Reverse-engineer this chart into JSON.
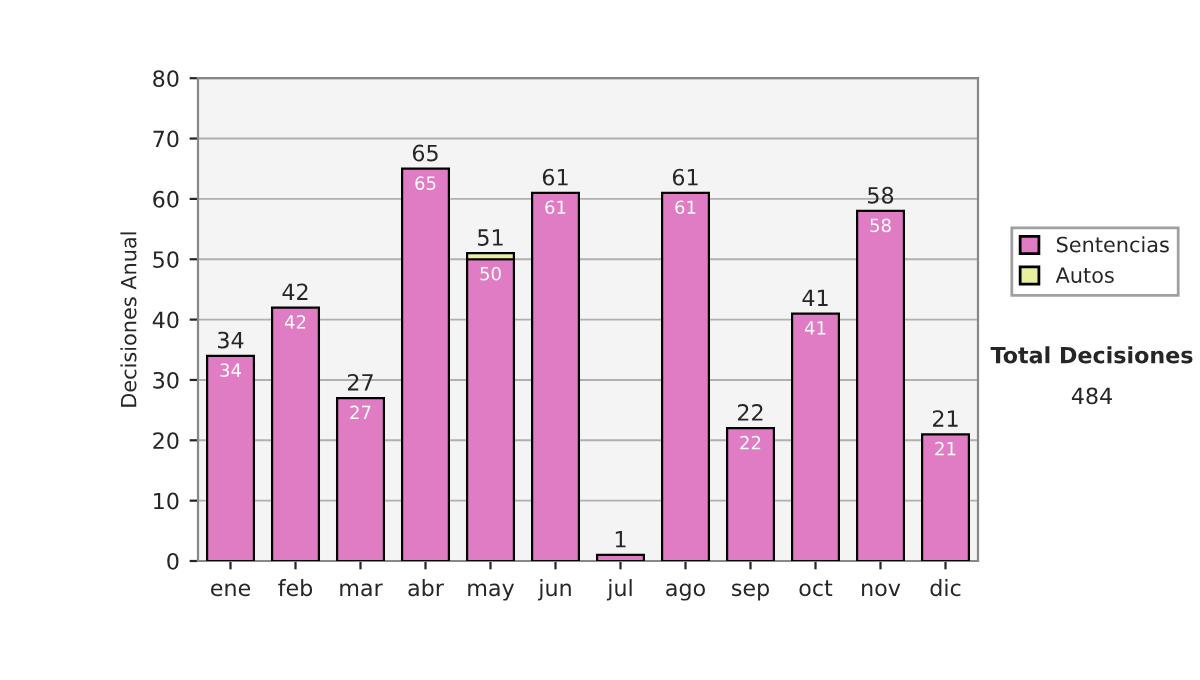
{
  "chart_data": {
    "type": "bar",
    "stacked": true,
    "ylabel": "Decisiones Anual",
    "categories": [
      "ene",
      "feb",
      "mar",
      "abr",
      "may",
      "jun",
      "jul",
      "ago",
      "sep",
      "oct",
      "nov",
      "dic"
    ],
    "series": [
      {
        "name": "Sentencias",
        "color": "#e07cc4",
        "values": [
          34,
          42,
          27,
          65,
          50,
          61,
          1,
          61,
          22,
          41,
          58,
          21
        ],
        "value_labels": [
          "34",
          "42",
          "27",
          "65",
          "50",
          "61",
          null,
          "61",
          "22",
          "41",
          "58",
          "21"
        ]
      },
      {
        "name": "Autos",
        "color": "#e8f0a0",
        "values": [
          0,
          0,
          0,
          0,
          1,
          0,
          0,
          0,
          0,
          0,
          0,
          0
        ]
      }
    ],
    "totals": [
      "34",
      "42",
      "27",
      "65",
      "51",
      "61",
      "1",
      "61",
      "22",
      "41",
      "58",
      "21"
    ],
    "ylim": [
      0,
      80
    ],
    "yticks": [
      0,
      10,
      20,
      30,
      40,
      50,
      60,
      70,
      80
    ],
    "grid": "y",
    "legend": "right",
    "annotations": [
      "Total Decisiones",
      "484"
    ]
  }
}
